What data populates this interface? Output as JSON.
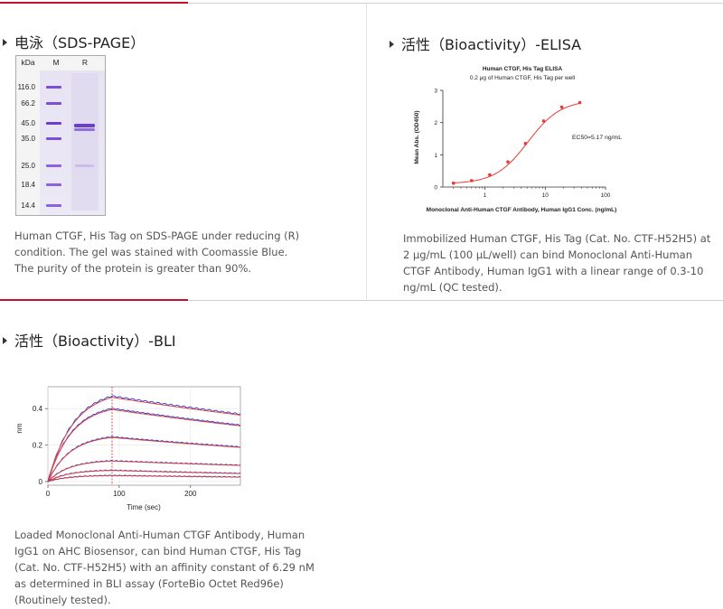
{
  "sections": {
    "sds": {
      "title": "电泳（SDS-PAGE）",
      "gel": {
        "col_kda": "kDa",
        "col_m": "M",
        "col_r": "R",
        "markers": [
          "116.0",
          "66.2",
          "45.0",
          "35.0",
          "25.0",
          "18.4",
          "14.4"
        ]
      },
      "description": "Human CTGF, His Tag on SDS-PAGE under reducing (R) condition. The gel was stained with Coomassie Blue. The purity of the protein is greater than 90%."
    },
    "elisa": {
      "title": "活性（Bioactivity）-ELISA",
      "chart_title": "Human CTGF, His Tag ELISA",
      "chart_subtitle": "0.2 μg of Human CTGF, His Tag per well",
      "ylabel": "Mean Abs. (OD450)",
      "xlabel": "Monoclonal Anti-Human CTGF Antibody, Human IgG1 Conc. (ng/mL)",
      "annotation": "EC50=5.17 ng/mL",
      "description": "Immobilized Human CTGF, His Tag (Cat. No. CTF-H52H5) at 2 μg/mL (100 μL/well) can bind Monoclonal Anti-Human CTGF Antibody, Human IgG1 with a linear range of 0.3-10 ng/mL (QC tested)."
    },
    "bli": {
      "title": "活性（Bioactivity）-BLI",
      "ylabel": "nm",
      "xlabel": "Time (sec)",
      "description": "Loaded Monoclonal Anti-Human CTGF Antibody, Human IgG1 on AHC Biosensor, can bind Human CTGF, His Tag (Cat. No. CTF-H52H5) with an affinity constant of 6.29 nM as determined in BLI assay (ForteBio Octet Red96e) (Routinely tested)."
    }
  },
  "colors": {
    "accent": "#c8102e",
    "fit": "#e53935",
    "raw": "#2b3bd1",
    "band": "#6a3fd0"
  },
  "chart_data": [
    {
      "type": "scatter",
      "title": "Human CTGF, His Tag ELISA",
      "subtitle": "0.2 μg of Human CTGF, His Tag per well",
      "xlabel": "Monoclonal Anti-Human CTGF Antibody, Human IgG1 Conc. (ng/mL)",
      "ylabel": "Mean Abs. (OD450)",
      "xscale": "log",
      "xlim": [
        0.2,
        100
      ],
      "ylim": [
        0,
        3
      ],
      "xticks": [
        "1",
        "10",
        "100"
      ],
      "yticks": [
        "0",
        "1",
        "2",
        "3"
      ],
      "series": [
        {
          "x": [
            0.3,
            0.6,
            1.2,
            2.4,
            4.7,
            9.4,
            18.8,
            37.5
          ],
          "y": [
            0.12,
            0.2,
            0.38,
            0.78,
            1.35,
            2.05,
            2.48,
            2.62
          ]
        }
      ],
      "fit": {
        "bottom": 0.1,
        "top": 2.7,
        "ec50": 5.17,
        "hill": 1.6
      },
      "annotations": [
        "EC50=5.17 ng/mL"
      ]
    },
    {
      "type": "line",
      "xlabel": "Time (sec)",
      "ylabel": "nm",
      "xlim": [
        0,
        270
      ],
      "ylim": [
        -0.02,
        0.52
      ],
      "xticks": [
        "0",
        "100",
        "200"
      ],
      "yticks": [
        "0",
        "0.2",
        "0.4"
      ],
      "association_end": 90,
      "curves": [
        {
          "rmax": 0.51,
          "end": 0.37,
          "kobs": 0.028
        },
        {
          "rmax": 0.43,
          "end": 0.31,
          "kobs": 0.03
        },
        {
          "rmax": 0.26,
          "end": 0.19,
          "kobs": 0.032
        },
        {
          "rmax": 0.12,
          "end": 0.09,
          "kobs": 0.034
        },
        {
          "rmax": 0.065,
          "end": 0.045,
          "kobs": 0.035
        },
        {
          "rmax": 0.035,
          "end": 0.025,
          "kobs": 0.035
        }
      ]
    }
  ]
}
